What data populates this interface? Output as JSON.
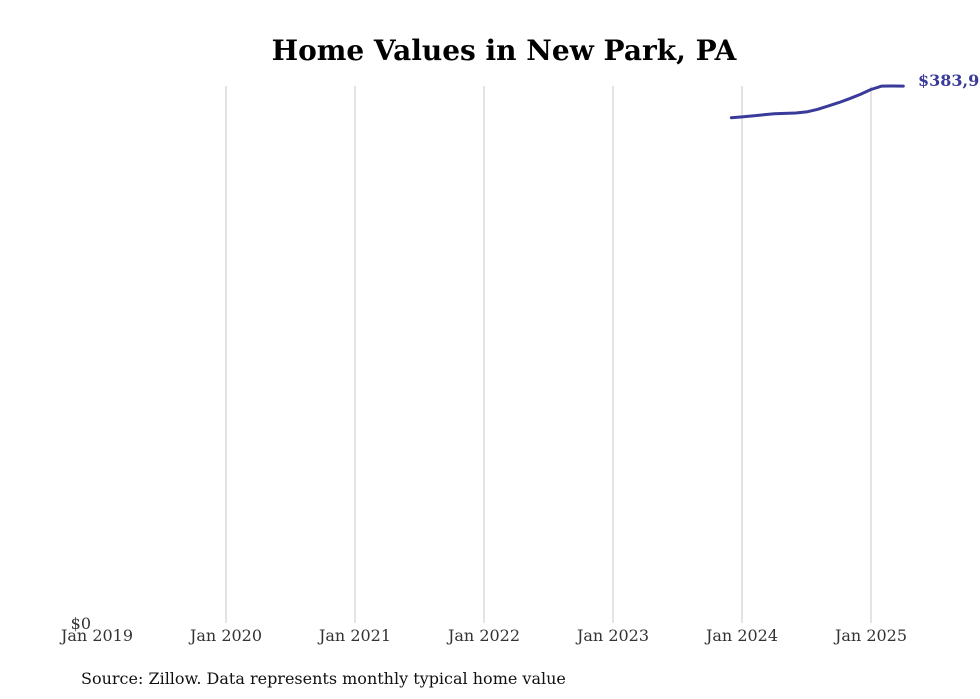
{
  "chart_data": {
    "type": "line",
    "title": "Home Values in New Park, PA",
    "xlabel": "",
    "ylabel": "",
    "x_ticks": [
      "Jan 2019",
      "Jan 2020",
      "Jan 2021",
      "Jan 2022",
      "Jan 2023",
      "Jan 2024",
      "Jan 2025"
    ],
    "y_ticks": [
      "$0"
    ],
    "ylim": [
      0,
      384000
    ],
    "xlim": [
      "2019-01",
      "2025-04"
    ],
    "grid": "vertical",
    "color": "#3a3a9a",
    "series": [
      {
        "x": [
          "2023-12",
          "2024-01",
          "2024-02",
          "2024-03",
          "2024-04",
          "2024-05",
          "2024-06",
          "2024-07",
          "2024-08",
          "2024-09",
          "2024-10",
          "2024-11",
          "2024-12",
          "2025-01",
          "2025-02",
          "2025-03",
          "2025-04"
        ],
        "values": [
          361300,
          361900,
          362600,
          363400,
          364100,
          364400,
          364700,
          365500,
          367300,
          369600,
          372100,
          374900,
          378000,
          381500,
          383900,
          384000,
          383900
        ]
      }
    ],
    "end_label": "$383,9"
  },
  "source": "Source: Zillow. Data represents monthly typical home value"
}
